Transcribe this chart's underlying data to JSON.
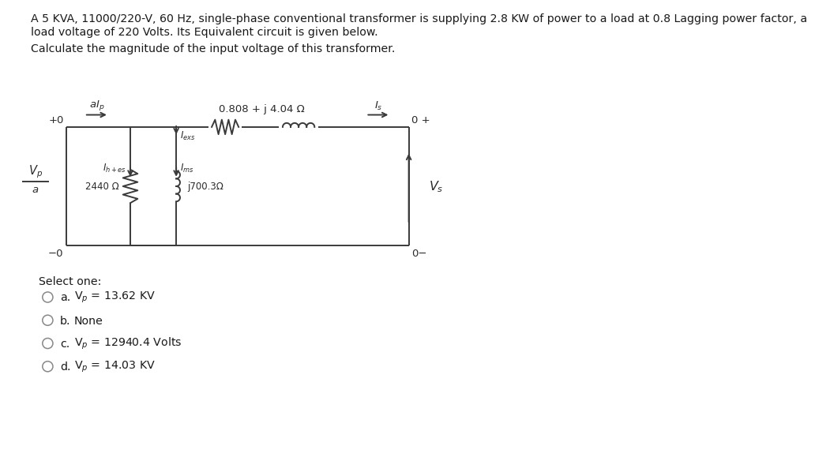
{
  "title_line1": "A 5 KVA, 11000/220-V, 60 Hz, single-phase conventional transformer is supplying 2.8 KW of power to a load at 0.8 Lagging power factor, a",
  "title_line2": "load voltage of 220 Volts. Its Equivalent circuit is given below.",
  "subtitle": "Calculate the magnitude of the input voltage of this transformer.",
  "series_impedance_label": "0.808 + j 4.04 Ω",
  "shunt_resistance_label": "2440 Ω",
  "shunt_reactance_label": "j700.3Ω",
  "node_tl": "+0",
  "node_tr": "0 +",
  "node_bl": "−0",
  "node_br": "0−",
  "select_one": "Select one:",
  "options": [
    {
      "letter": "a.",
      "text": "V$_p$ = 13.62 KV"
    },
    {
      "letter": "b.",
      "text": "None"
    },
    {
      "letter": "c.",
      "text": "V$_p$ = 12940.4 Volts"
    },
    {
      "letter": "d.",
      "text": "V$_p$ = 14.03 KV"
    }
  ],
  "bg_color": "#ffffff",
  "line_color": "#3a3a3a",
  "text_color": "#2a2a2a",
  "option_text_color": "#555555"
}
